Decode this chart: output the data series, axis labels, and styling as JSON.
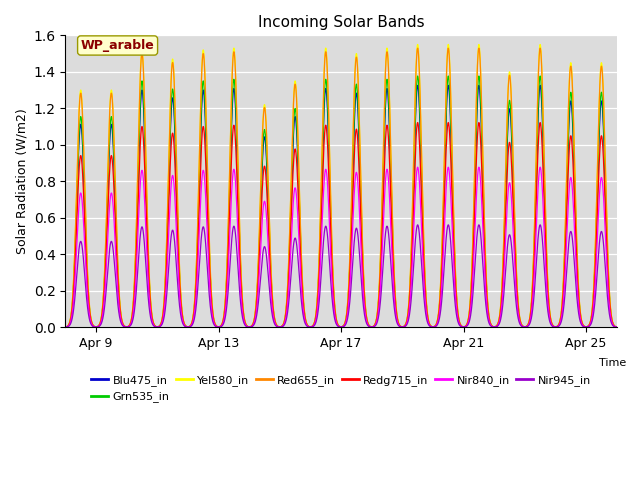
{
  "title": "Incoming Solar Bands",
  "ylabel": "Solar Radiation (W/m2)",
  "annotation": "WP_arable",
  "ylim": [
    0.0,
    1.6
  ],
  "background_color": "#dcdcdc",
  "xtick_labels": [
    "Apr 9",
    "Apr 13",
    "Apr 17",
    "Apr 21",
    "Apr 25"
  ],
  "series": [
    {
      "name": "Blu475_in",
      "color": "#0000cc",
      "scale": 1.3
    },
    {
      "name": "Grn535_in",
      "color": "#00cc00",
      "scale": 1.35
    },
    {
      "name": "Yel580_in",
      "color": "#ffff00",
      "scale": 1.52
    },
    {
      "name": "Red655_in",
      "color": "#ff8800",
      "scale": 1.5
    },
    {
      "name": "Redg715_in",
      "color": "#ff0000",
      "scale": 1.1
    },
    {
      "name": "Nir840_in",
      "color": "#ff00ff",
      "scale": 0.86
    },
    {
      "name": "Nir945_in",
      "color": "#9900cc",
      "scale": 0.55
    }
  ],
  "num_days": 18,
  "ppd": 500,
  "day_peaks_yel": [
    1.3,
    1.3,
    1.52,
    1.47,
    1.52,
    1.53,
    1.22,
    1.35,
    1.53,
    1.5,
    1.53,
    1.55,
    1.55,
    1.55,
    1.4,
    1.55,
    1.45,
    1.45
  ],
  "sigma": 0.13,
  "day_start": 0.5,
  "xtick_days": [
    1,
    5,
    9,
    13,
    17
  ]
}
